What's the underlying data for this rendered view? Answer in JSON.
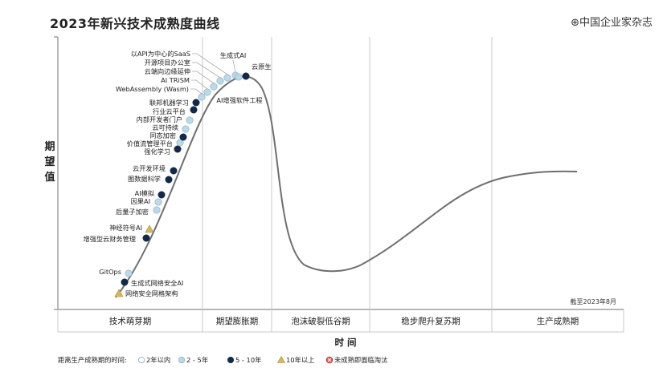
{
  "title": "2023年新兴技术成熟度曲线",
  "watermark": "⊕中国企业家杂志",
  "y_axis_label": [
    "期",
    "望",
    "值"
  ],
  "x_axis_label": "时 间",
  "date_note": "截至2023年8月",
  "phases": [
    "技术萌芽期",
    "期望膨胀期",
    "泡沫破裂低谷期",
    "稳步爬升复苏期",
    "生产成熟期"
  ],
  "legend": {
    "prefix": "距离生产成熟期的时间:",
    "items": [
      {
        "label": "2年以内",
        "marker": "circle",
        "color": "#ffffff"
      },
      {
        "label": "2 - 5年",
        "marker": "circle",
        "color": "#bcd9e8"
      },
      {
        "label": "5 - 10年",
        "marker": "circle",
        "color": "#12294a"
      },
      {
        "label": "10年以上",
        "marker": "triangle",
        "color": "#d8b65c"
      },
      {
        "label": "未成熟即面临淘汰",
        "marker": "x-circle",
        "color": "#d9534f"
      }
    ]
  },
  "colors": {
    "curve": "#6f6f6f",
    "axis": "#8a8a8a",
    "light": "#bcd9e8",
    "dark": "#12294a",
    "gold": "#d8b65c",
    "tick": "#aaaaaa"
  },
  "technologies": [
    {
      "name": "网络安全网格架构",
      "type": "gold"
    },
    {
      "name": "生成式网络安全AI",
      "type": "dark"
    },
    {
      "name": "GitOps",
      "type": "light"
    },
    {
      "name": "增强型云财务管理",
      "type": "dark"
    },
    {
      "name": "神经符号AI",
      "type": "gold"
    },
    {
      "name": "后量子加密",
      "type": "light"
    },
    {
      "name": "因果AI",
      "type": "light"
    },
    {
      "name": "AI模拟",
      "type": "dark"
    },
    {
      "name": "图数据科学",
      "type": "dark"
    },
    {
      "name": "云开发环境",
      "type": "dark"
    },
    {
      "name": "强化学习",
      "type": "dark"
    },
    {
      "name": "价值流管理平台",
      "type": "light"
    },
    {
      "name": "同态加密",
      "type": "dark"
    },
    {
      "name": "云可持续",
      "type": "light"
    },
    {
      "name": "内部开发者门户",
      "type": "light"
    },
    {
      "name": "行业云平台",
      "type": "dark"
    },
    {
      "name": "联邦机器学习",
      "type": "dark"
    },
    {
      "name": "WebAssembly (Wasm)",
      "type": "light"
    },
    {
      "name": "AI TRiSM",
      "type": "light"
    },
    {
      "name": "云端向边缘延伸",
      "type": "light"
    },
    {
      "name": "开源项目办公室",
      "type": "light"
    },
    {
      "name": "以API为中心的SaaS",
      "type": "light"
    },
    {
      "name": "生成式AI",
      "type": "light"
    },
    {
      "name": "AI增强软件工程",
      "type": "light"
    },
    {
      "name": "云原生",
      "type": "dark"
    }
  ]
}
